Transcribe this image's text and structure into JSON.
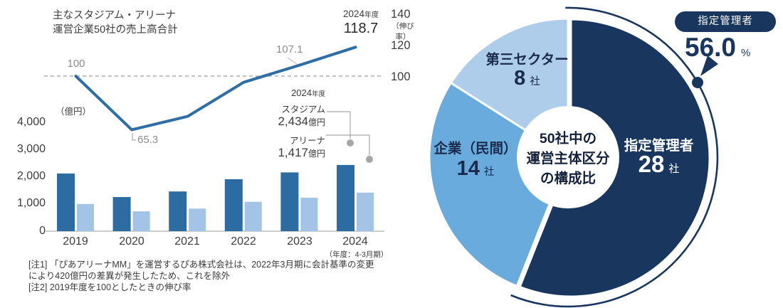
{
  "left_chart": {
    "title": [
      "主なスタジアム・アリーナ",
      "運営企業50社の売上高合計"
    ],
    "unit_left": "（億円）",
    "growth_axis_note": "（伸び率）",
    "left_ticks": [
      "4,000",
      "3,000",
      "2,000",
      "1,000",
      "0"
    ],
    "right_ticks": [
      "140",
      "120",
      "100"
    ],
    "line_labels": {
      "start": "100",
      "dip": "65.3",
      "y2023": "107.1",
      "peak_year": "2024",
      "peak_year_suffix": "年度",
      "peak_value": "118.7"
    },
    "annotation": {
      "year": "2024",
      "year_suffix": "年度",
      "stadium_label": "スタジアム",
      "stadium_value": "2,434",
      "stadium_unit": "億円",
      "arena_label": "アリーナ",
      "arena_value": "1,417",
      "arena_unit": "億円"
    },
    "x_labels": [
      "2019",
      "2020",
      "2021",
      "2022",
      "2023",
      "2024"
    ],
    "x_period_note": "（年度：4-3月期）",
    "footnotes": [
      "[注1] 「ぴあアリーナMM」を運営するぴあ株式会社は、2022年3月期に会計基準の変更",
      "により420億円の差異が発生したため、これを除外",
      "[注2] 2019年度を100としたときの伸び率"
    ]
  },
  "donut": {
    "center_text": [
      "50社中の",
      "運営主体区分",
      "の構成比"
    ],
    "badge_label": "指定管理者",
    "badge_value": "56.0",
    "badge_unit": "%",
    "labels": {
      "third_sector": {
        "name": "第三セクター",
        "count": "8",
        "unit": "社"
      },
      "private": {
        "name": "企業（民間）",
        "count": "14",
        "unit": "社"
      },
      "designated": {
        "name": "指定管理者",
        "count": "28",
        "unit": "社"
      }
    }
  },
  "colors": {
    "bar_dark": "#2d6ca3",
    "bar_light": "#a3c4e6",
    "line": "#2e6da6",
    "donut_dark": "#18365e",
    "donut_mid": "#68abdc",
    "donut_light": "#aecdea",
    "gray_label": "#8c8c8c"
  },
  "chart_data": [
    {
      "type": "bar",
      "title": "主なスタジアム・アリーナ運営企業50社の売上高合計",
      "categories": [
        "2019",
        "2020",
        "2021",
        "2022",
        "2023",
        "2024"
      ],
      "series": [
        {
          "name": "スタジアム",
          "type": "bar",
          "unit": "億円",
          "values": [
            2120,
            1255,
            1460,
            1910,
            2160,
            2434
          ]
        },
        {
          "name": "アリーナ",
          "type": "bar",
          "unit": "億円",
          "values": [
            1000,
            730,
            830,
            1080,
            1230,
            1417
          ]
        },
        {
          "name": "伸び率（2019年度=100）",
          "type": "line",
          "values": [
            100,
            65.3,
            74,
            96,
            107.1,
            118.7
          ]
        }
      ],
      "ylabel_left": "（億円）",
      "ylabel_right": "（伸び率）",
      "ylim_left": [
        0,
        4000
      ],
      "left_ticks": [
        0,
        1000,
        2000,
        3000,
        4000
      ],
      "right_ticks": [
        100,
        120,
        140
      ],
      "baseline_value": 100,
      "period_note": "年度：4-3月期"
    },
    {
      "type": "pie",
      "title": "50社中の運営主体区分の構成比",
      "total": 50,
      "slices": [
        {
          "label": "指定管理者",
          "value": 28,
          "pct": 56.0
        },
        {
          "label": "企業（民間）",
          "value": 14,
          "pct": 28.0
        },
        {
          "label": "第三セクター",
          "value": 8,
          "pct": 16.0
        }
      ],
      "callout": {
        "label": "指定管理者",
        "value": "56.0%"
      }
    }
  ]
}
